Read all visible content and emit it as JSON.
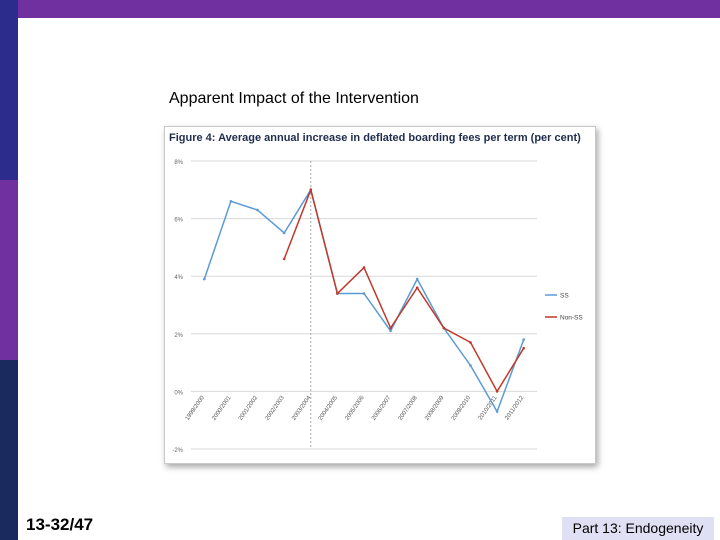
{
  "slide": {
    "title": "Apparent Impact of the Intervention",
    "number": "13-32/47",
    "footer": "Part 13: Endogeneity"
  },
  "colors": {
    "accent_top": "#7030a0",
    "side_dark": "#2c2c8c",
    "side_purple": "#7030a0",
    "side_navy": "#1a2a5e",
    "footer_bg": "#e0e0f4",
    "series_blue": "#5b9bd5",
    "series_red": "#c0392b"
  },
  "chart_data": {
    "type": "line",
    "title": "Figure 4: Average annual increase in deflated boarding fees per term (per cent)",
    "categories": [
      "1999/2000",
      "2000/2001",
      "2001/2002",
      "2002/2003",
      "2003/2004",
      "2004/2005",
      "2005/2006",
      "2006/2007",
      "2007/2008",
      "2008/2009",
      "2009/2010",
      "2010/2011",
      "2011/2012"
    ],
    "x": [
      1999.5,
      2000.5,
      2001.5,
      2002.5,
      2003.5,
      2004.5,
      2005.5,
      2006.5,
      2007.5,
      2008.5,
      2009.5,
      2010.5,
      2011.5
    ],
    "xlim": [
      1999,
      2012
    ],
    "ylim": [
      -2,
      8
    ],
    "yticks": [
      -2,
      0,
      2,
      4,
      6,
      8
    ],
    "ytick_labels": [
      "-2%",
      "0%",
      "2%",
      "4%",
      "6%",
      "8%"
    ],
    "grid": true,
    "legend": "right",
    "vline_x": 2003.5,
    "series": [
      {
        "name": "SS",
        "color": "#5b9bd5",
        "points": [
          [
            1999.5,
            3.9
          ],
          [
            2000.5,
            6.6
          ],
          [
            2001.5,
            6.3
          ],
          [
            2002.5,
            5.5
          ],
          [
            2003.5,
            7.0
          ],
          [
            2004.5,
            3.4
          ],
          [
            2005.5,
            3.4
          ],
          [
            2006.5,
            2.1
          ],
          [
            2007.5,
            3.9
          ],
          [
            2008.5,
            2.2
          ],
          [
            2009.5,
            0.9
          ],
          [
            2010.5,
            -0.7
          ],
          [
            2011.5,
            1.8
          ]
        ]
      },
      {
        "name": "Non-SS",
        "color": "#c0392b",
        "points": [
          [
            2002.5,
            4.6
          ],
          [
            2003.5,
            7.0
          ],
          [
            2004.5,
            3.4
          ],
          [
            2005.5,
            4.3
          ],
          [
            2006.5,
            2.2
          ],
          [
            2007.5,
            3.6
          ],
          [
            2008.5,
            2.2
          ],
          [
            2009.5,
            1.7
          ],
          [
            2010.5,
            0.0
          ],
          [
            2011.5,
            1.5
          ]
        ]
      }
    ]
  }
}
